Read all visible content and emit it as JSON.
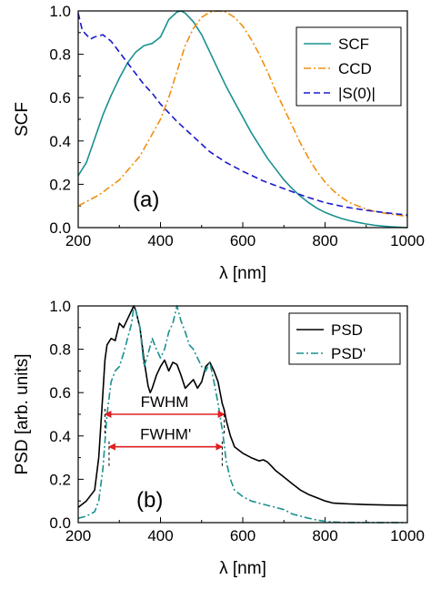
{
  "chart_data": [
    {
      "type": "line",
      "panel_label": "(a)",
      "xlabel": "λ [nm]",
      "ylabel": "SCF",
      "xlim": [
        200,
        1000
      ],
      "ylim": [
        0.0,
        1.0
      ],
      "xticks": [
        "200",
        "400",
        "600",
        "800",
        "1000"
      ],
      "yticks": [
        "0.0",
        "0.2",
        "0.4",
        "0.6",
        "0.8",
        "1.0"
      ],
      "grid": false,
      "legend": "top-right",
      "series": [
        {
          "name": "SCF",
          "style": "solid",
          "color": "#1a9090",
          "x": [
            200,
            220,
            240,
            260,
            280,
            300,
            320,
            340,
            360,
            380,
            400,
            420,
            440,
            450,
            460,
            480,
            500,
            520,
            540,
            560,
            580,
            600,
            620,
            640,
            660,
            680,
            700,
            720,
            740,
            760,
            780,
            800,
            820,
            840,
            860,
            880,
            900,
            920,
            940,
            960,
            980,
            1000
          ],
          "y": [
            0.24,
            0.3,
            0.41,
            0.52,
            0.61,
            0.69,
            0.76,
            0.81,
            0.84,
            0.85,
            0.88,
            0.96,
            0.995,
            1.0,
            0.99,
            0.95,
            0.89,
            0.81,
            0.73,
            0.65,
            0.58,
            0.51,
            0.44,
            0.38,
            0.32,
            0.27,
            0.22,
            0.18,
            0.145,
            0.115,
            0.09,
            0.07,
            0.055,
            0.042,
            0.032,
            0.024,
            0.017,
            0.011,
            0.007,
            0.004,
            0.002,
            0.0
          ]
        },
        {
          "name": "CCD",
          "style": "dash-dot",
          "color": "#f09010",
          "x": [
            200,
            250,
            300,
            350,
            400,
            420,
            440,
            460,
            480,
            500,
            520,
            540,
            560,
            580,
            600,
            620,
            640,
            660,
            680,
            700,
            720,
            740,
            760,
            780,
            800,
            820,
            840,
            860,
            880,
            900,
            920,
            940,
            960,
            980,
            1000
          ],
          "y": [
            0.1,
            0.15,
            0.22,
            0.33,
            0.5,
            0.6,
            0.72,
            0.84,
            0.92,
            0.97,
            0.995,
            1.0,
            0.995,
            0.97,
            0.93,
            0.87,
            0.8,
            0.72,
            0.63,
            0.55,
            0.47,
            0.39,
            0.32,
            0.26,
            0.21,
            0.17,
            0.14,
            0.115,
            0.1,
            0.085,
            0.075,
            0.068,
            0.062,
            0.057,
            0.052
          ]
        },
        {
          "name": "|S(0)|",
          "style": "dashed",
          "color": "#1a1acc",
          "x": [
            200,
            210,
            220,
            230,
            240,
            260,
            280,
            300,
            320,
            340,
            360,
            380,
            400,
            440,
            480,
            520,
            560,
            600,
            650,
            700,
            750,
            800,
            850,
            900,
            950,
            1000
          ],
          "y": [
            0.99,
            0.91,
            0.89,
            0.87,
            0.88,
            0.89,
            0.86,
            0.81,
            0.76,
            0.71,
            0.66,
            0.62,
            0.57,
            0.49,
            0.42,
            0.35,
            0.3,
            0.26,
            0.215,
            0.18,
            0.145,
            0.115,
            0.095,
            0.08,
            0.068,
            0.058
          ]
        }
      ]
    },
    {
      "type": "line",
      "panel_label": "(b)",
      "xlabel": "λ [nm]",
      "ylabel": "PSD [arb. units]",
      "xlim": [
        200,
        1000
      ],
      "ylim": [
        0.0,
        1.0
      ],
      "xticks": [
        "200",
        "400",
        "600",
        "800",
        "1000"
      ],
      "yticks": [
        "0.0",
        "0.2",
        "0.4",
        "0.6",
        "0.8",
        "1.0"
      ],
      "grid": false,
      "legend": "top-right",
      "series": [
        {
          "name": "PSD",
          "style": "solid",
          "color": "#000000",
          "x": [
            200,
            220,
            240,
            250,
            260,
            265,
            270,
            280,
            290,
            300,
            310,
            320,
            330,
            335,
            340,
            350,
            360,
            370,
            375,
            380,
            390,
            400,
            410,
            420,
            430,
            440,
            450,
            460,
            470,
            480,
            490,
            500,
            510,
            520,
            530,
            540,
            550,
            555,
            560,
            570,
            580,
            600,
            620,
            640,
            650,
            660,
            670,
            680,
            700,
            720,
            740,
            760,
            780,
            800,
            820,
            840,
            860,
            880,
            900,
            950,
            1000
          ],
          "y": [
            0.07,
            0.1,
            0.15,
            0.3,
            0.6,
            0.75,
            0.82,
            0.85,
            0.84,
            0.92,
            0.9,
            0.94,
            0.98,
            1.0,
            0.98,
            0.9,
            0.75,
            0.63,
            0.6,
            0.62,
            0.68,
            0.72,
            0.75,
            0.7,
            0.74,
            0.73,
            0.68,
            0.62,
            0.64,
            0.66,
            0.62,
            0.65,
            0.72,
            0.74,
            0.7,
            0.65,
            0.55,
            0.52,
            0.47,
            0.4,
            0.35,
            0.32,
            0.3,
            0.285,
            0.29,
            0.28,
            0.26,
            0.24,
            0.21,
            0.18,
            0.15,
            0.13,
            0.115,
            0.1,
            0.09,
            0.088,
            0.086,
            0.085,
            0.083,
            0.081,
            0.08
          ]
        },
        {
          "name": "PSD'",
          "style": "dash-dot",
          "color": "#1a9090",
          "x": [
            200,
            220,
            240,
            250,
            260,
            270,
            280,
            290,
            300,
            310,
            320,
            330,
            335,
            340,
            350,
            360,
            370,
            380,
            390,
            400,
            410,
            420,
            430,
            440,
            450,
            460,
            470,
            480,
            490,
            500,
            510,
            520,
            530,
            540,
            550,
            555,
            560,
            570,
            580,
            600,
            620,
            640,
            660,
            680,
            700,
            720,
            740,
            760,
            780,
            800,
            820,
            840,
            1000
          ],
          "y": [
            0.02,
            0.03,
            0.05,
            0.1,
            0.25,
            0.5,
            0.65,
            0.7,
            0.72,
            0.78,
            0.85,
            0.92,
            1.0,
            0.98,
            0.9,
            0.72,
            0.78,
            0.85,
            0.8,
            0.76,
            0.8,
            0.88,
            0.92,
            1.0,
            0.93,
            0.88,
            0.82,
            0.8,
            0.76,
            0.72,
            0.7,
            0.74,
            0.65,
            0.55,
            0.43,
            0.36,
            0.28,
            0.2,
            0.15,
            0.12,
            0.1,
            0.09,
            0.08,
            0.07,
            0.06,
            0.04,
            0.03,
            0.02,
            0.012,
            0.006,
            0.003,
            0.001,
            0.0
          ]
        }
      ],
      "annotations": [
        {
          "label": "FWHM",
          "x_start": 265,
          "x_end": 555,
          "y": 0.5
        },
        {
          "label": "FWHM'",
          "x_start": 275,
          "x_end": 550,
          "y": 0.35
        }
      ]
    }
  ]
}
